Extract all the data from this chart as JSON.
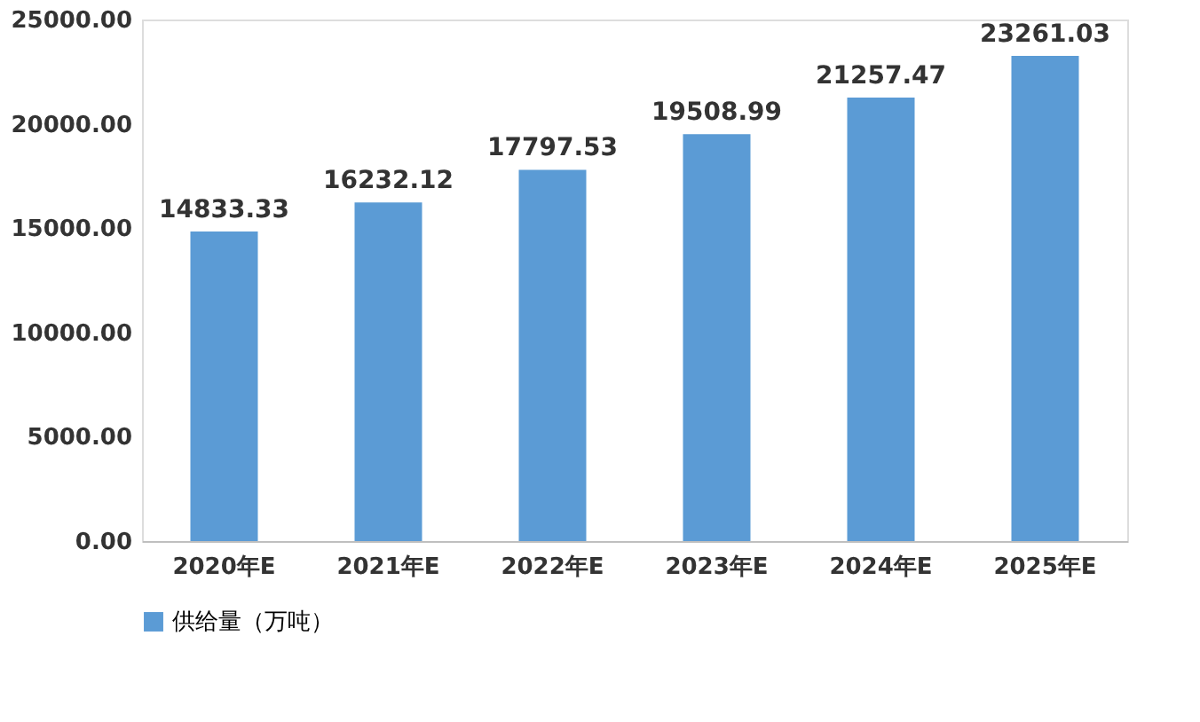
{
  "chart_data": {
    "type": "bar",
    "categories": [
      "2020年E",
      "2021年E",
      "2022年E",
      "2023年E",
      "2024年E",
      "2025年E"
    ],
    "series": [
      {
        "name": "供给量（万吨）",
        "color": "#5b9bd5",
        "values": [
          14833.33,
          16232.12,
          17797.53,
          19508.99,
          21257.47,
          23261.03
        ]
      }
    ],
    "ylim": [
      0,
      25000
    ],
    "yticks": [
      {
        "value": 0,
        "label": "0.00"
      },
      {
        "value": 5000,
        "label": "5000.00"
      },
      {
        "value": 10000,
        "label": "10000.00"
      },
      {
        "value": 15000,
        "label": "15000.00"
      },
      {
        "value": 20000,
        "label": "20000.00"
      },
      {
        "value": 25000,
        "label": "25000.00"
      }
    ],
    "data_labels": true,
    "grid": false,
    "legend": "bottom"
  }
}
